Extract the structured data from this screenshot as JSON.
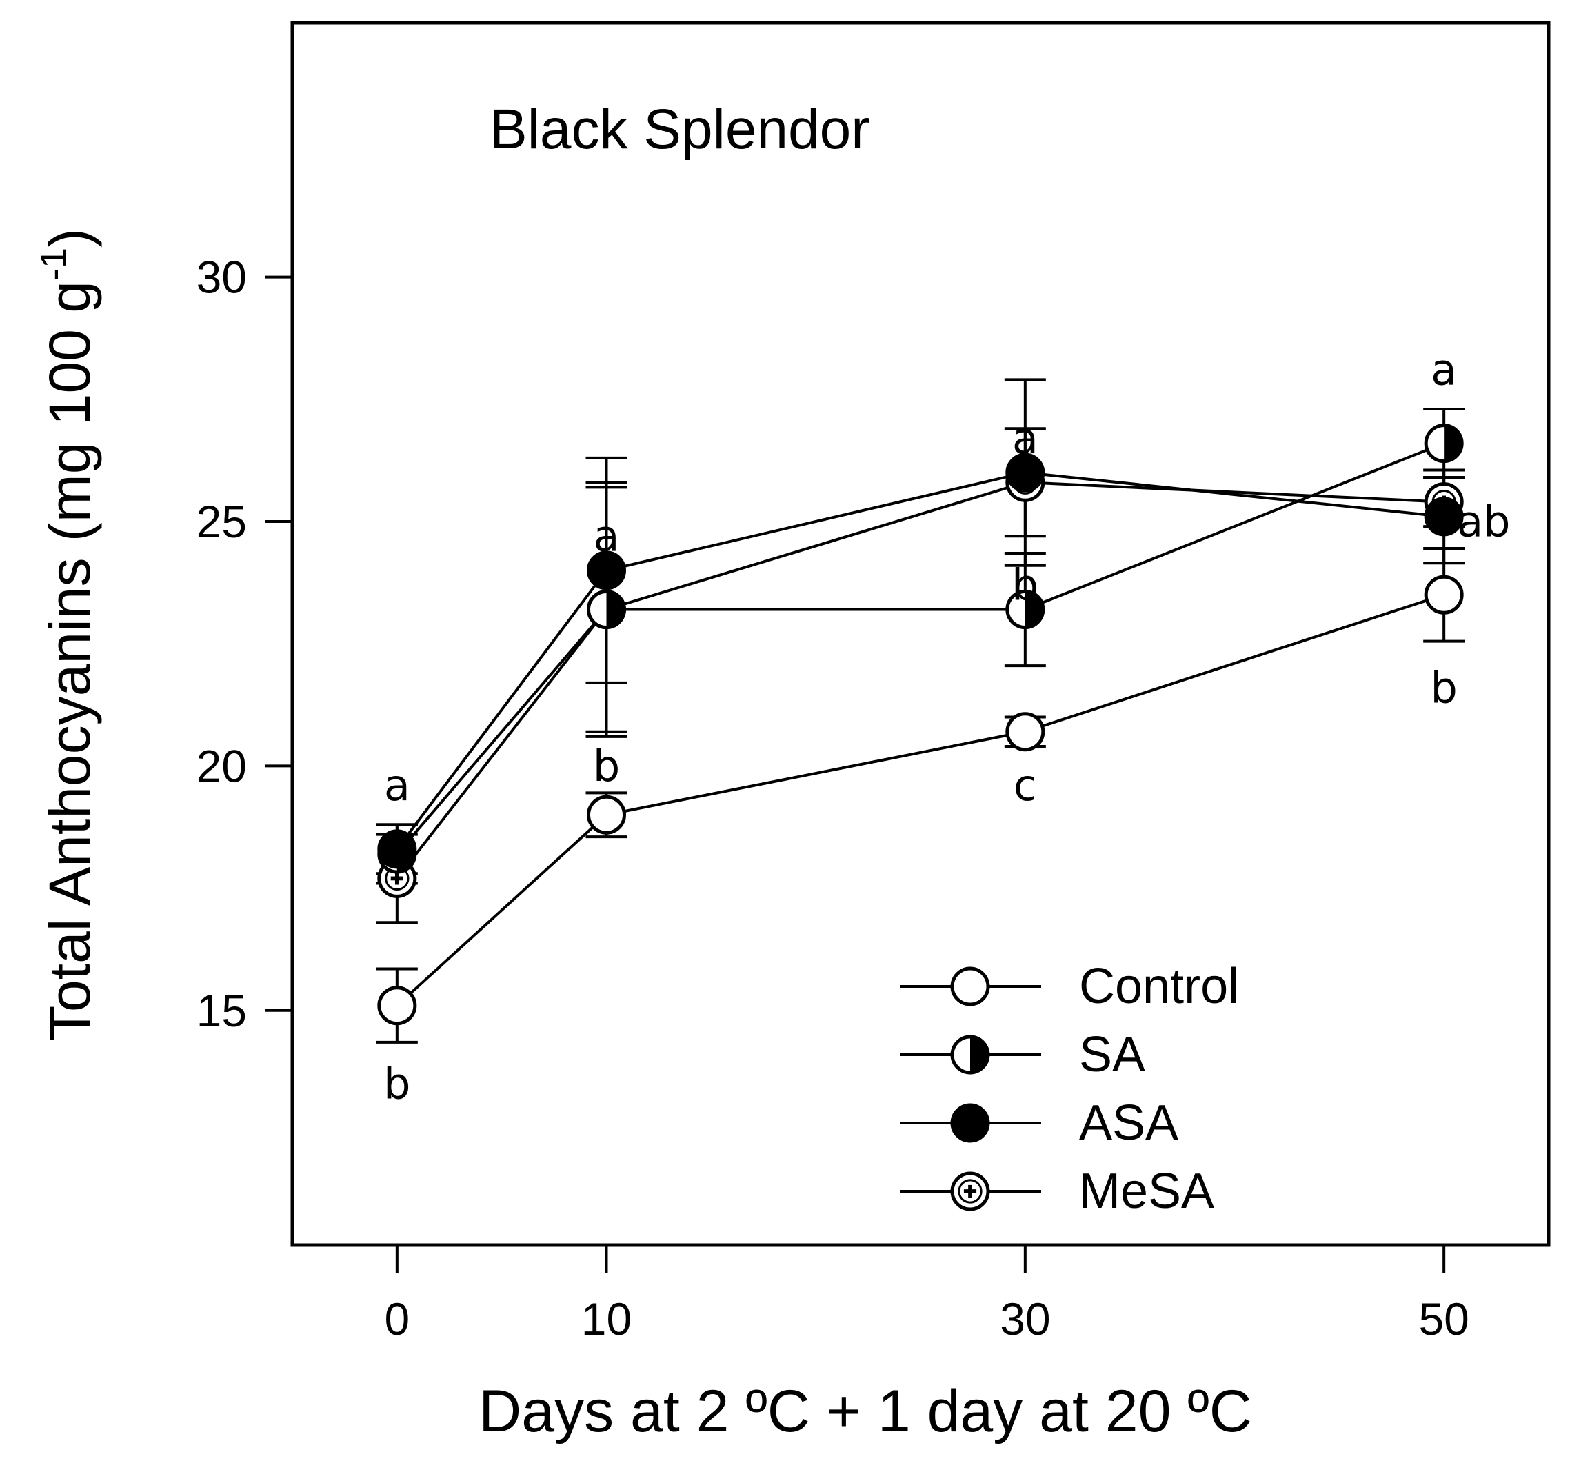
{
  "chart_data": {
    "type": "line",
    "title": "Black Splendor",
    "xlabel": "Days at 2 ºC + 1 day at 20 ºC",
    "ylabel": "Total Anthocyanins (mg 100 g",
    "ylabel_sup": "-1",
    "ylabel_close": ")",
    "x": [
      0,
      10,
      30,
      50
    ],
    "x_ticks": [
      "0",
      "10",
      "30",
      "50"
    ],
    "y_ticks": [
      "15",
      "20",
      "25",
      "30"
    ],
    "xlim": [
      -5,
      55
    ],
    "ylim": [
      10.2,
      35.2
    ],
    "grid": false,
    "legend_position": "bottom-right",
    "series": [
      {
        "name": "Control",
        "marker": "open-circle",
        "values": [
          15.1,
          19.0,
          20.7,
          23.5
        ],
        "errors": [
          0.75,
          0.45,
          0.3,
          0.95
        ]
      },
      {
        "name": "SA",
        "marker": "half-filled-circle",
        "values": [
          18.2,
          23.2,
          23.2,
          26.6
        ],
        "errors": [
          0.6,
          2.6,
          1.15,
          0.7
        ]
      },
      {
        "name": "ASA",
        "marker": "filled-circle",
        "values": [
          18.3,
          24.0,
          26.0,
          25.1
        ],
        "errors": [
          0.5,
          2.3,
          1.9,
          0.95
        ]
      },
      {
        "name": "MeSA",
        "marker": "dotted-circle",
        "values": [
          17.7,
          23.2,
          25.8,
          25.4
        ],
        "errors": [
          0.9,
          2.5,
          1.1,
          0.5
        ]
      }
    ],
    "annotations": [
      {
        "text": "a",
        "x": 0,
        "y": 19.6
      },
      {
        "text": "b",
        "x": 0,
        "y": 13.5
      },
      {
        "text": "a",
        "x": 10,
        "y": 24.7
      },
      {
        "text": "b",
        "x": 10,
        "y": 20.0
      },
      {
        "text": "a",
        "x": 30,
        "y": 26.7
      },
      {
        "text": "b",
        "x": 30,
        "y": 23.7
      },
      {
        "text": "c",
        "x": 30,
        "y": 19.6
      },
      {
        "text": "a",
        "x": 50,
        "y": 28.1
      },
      {
        "text": "ab",
        "x": 51.9,
        "y": 25.0
      },
      {
        "text": "b",
        "x": 50,
        "y": 21.6
      }
    ]
  }
}
